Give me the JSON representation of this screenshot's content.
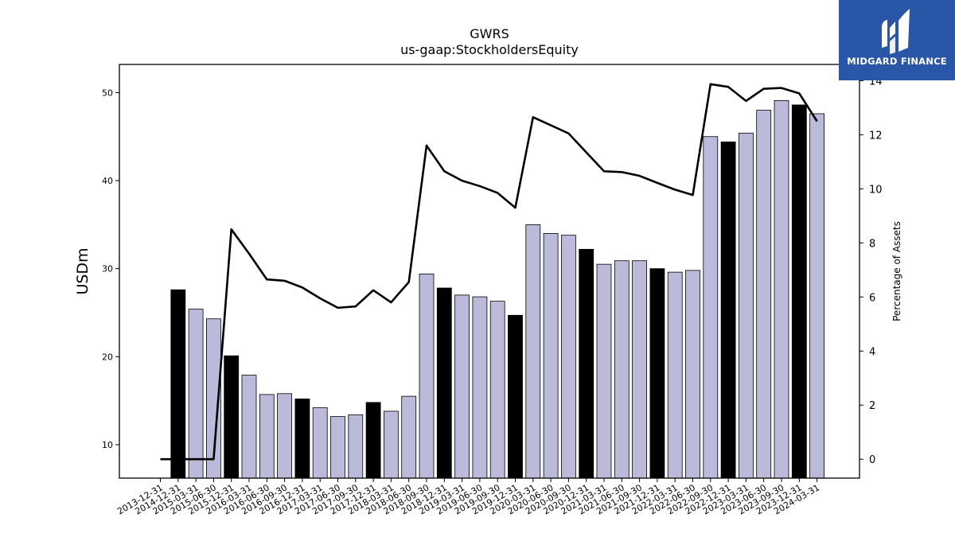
{
  "chart_data": {
    "type": "bar",
    "title": "GWRS",
    "subtitle": "us-gaap:StockholdersEquity",
    "ylabel": "USDm",
    "y2label": "Percentage of Assets",
    "ylim": [
      6.2,
      53.2
    ],
    "y2lim": [
      -0.7,
      14.6
    ],
    "yticks": [
      10,
      20,
      30,
      40,
      50
    ],
    "y2ticks": [
      0,
      2,
      4,
      6,
      8,
      10,
      12,
      14
    ],
    "categories": [
      "2013-12-31",
      "2014-12-31",
      "2015-03-31",
      "2015-06-30",
      "2015-12-31",
      "2016-03-31",
      "2016-06-30",
      "2016-09-30",
      "2016-12-31",
      "2017-03-31",
      "2017-06-30",
      "2017-09-30",
      "2017-12-31",
      "2018-03-31",
      "2018-06-30",
      "2018-09-30",
      "2018-12-31",
      "2019-03-31",
      "2019-06-30",
      "2019-09-30",
      "2019-12-31",
      "2020-03-31",
      "2020-06-30",
      "2020-09-30",
      "2020-12-31",
      "2021-03-31",
      "2021-06-30",
      "2021-09-30",
      "2021-12-31",
      "2022-03-31",
      "2022-06-30",
      "2022-09-30",
      "2022-12-31",
      "2023-03-31",
      "2023-06-30",
      "2023-09-30",
      "2023-12-31",
      "2024-03-31"
    ],
    "series": [
      {
        "kind": "bar",
        "values": [
          null,
          27.6,
          25.4,
          24.3,
          20.1,
          17.9,
          15.7,
          15.8,
          15.2,
          14.2,
          13.2,
          13.4,
          14.8,
          13.8,
          15.5,
          29.4,
          27.8,
          27.0,
          26.8,
          26.3,
          24.7,
          35.0,
          34.0,
          33.8,
          32.2,
          30.5,
          30.9,
          30.9,
          30.0,
          29.6,
          29.8,
          45.0,
          44.4,
          45.4,
          48.0,
          49.1,
          48.6,
          47.6
        ],
        "annual_flags": [
          false,
          true,
          false,
          false,
          true,
          false,
          false,
          false,
          true,
          false,
          false,
          false,
          true,
          false,
          false,
          false,
          true,
          false,
          false,
          false,
          true,
          false,
          false,
          false,
          true,
          false,
          false,
          false,
          true,
          false,
          false,
          false,
          true,
          false,
          false,
          false,
          true,
          false
        ]
      },
      {
        "kind": "line",
        "axis": "right",
        "values": [
          0.0,
          0.0,
          0.0,
          0.0,
          8.5,
          7.6,
          6.65,
          6.6,
          6.35,
          5.95,
          5.6,
          5.65,
          6.25,
          5.8,
          6.55,
          11.6,
          10.65,
          10.3,
          10.1,
          9.85,
          9.3,
          12.65,
          12.35,
          12.05,
          11.35,
          10.65,
          10.62,
          10.48,
          10.22,
          9.97,
          9.77,
          13.87,
          13.77,
          13.25,
          13.7,
          13.73,
          13.53,
          12.5
        ]
      }
    ],
    "colors": {
      "annual_bar": "#000000",
      "quarter_bar": "#bcbadb",
      "line": "#000000"
    },
    "grid": false
  },
  "logo": {
    "text": "MIDGARD FINANCE",
    "background": "#2a56a8"
  }
}
